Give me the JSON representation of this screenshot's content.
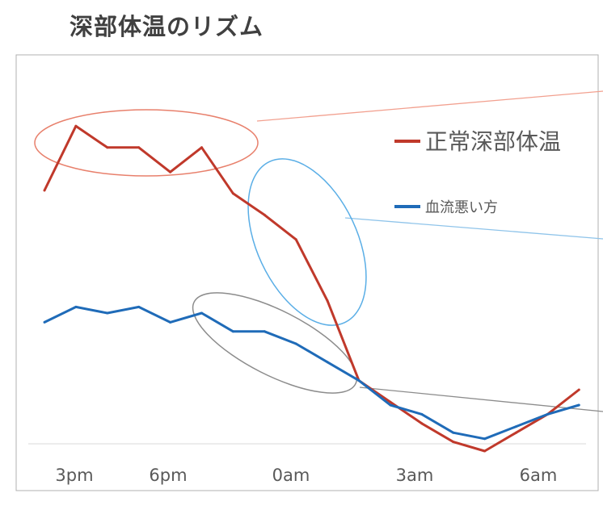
{
  "title": "深部体温のリズム",
  "chart_data": {
    "type": "line",
    "x_tick_labels": [
      "3pm",
      "6pm",
      "0am",
      "3am",
      "6am"
    ],
    "x": [
      0,
      1,
      2,
      3,
      4,
      5,
      6,
      7,
      8,
      9,
      10,
      11,
      12,
      13,
      14,
      15,
      16,
      17
    ],
    "series": [
      {
        "name": "正常深部体温",
        "color": "#c0392b",
        "values": [
          80,
          101,
          94,
          94,
          86,
          94,
          79,
          72,
          64,
          44,
          18,
          11,
          4,
          -2,
          -5,
          1,
          7,
          15
        ]
      },
      {
        "name": "血流悪い方",
        "color": "#1f6bb8",
        "values": [
          37,
          42,
          40,
          42,
          37,
          40,
          34,
          34,
          30,
          24,
          18,
          10,
          7,
          1,
          -1,
          3,
          7,
          10
        ]
      }
    ],
    "legend_position": "right",
    "grid": false
  }
}
